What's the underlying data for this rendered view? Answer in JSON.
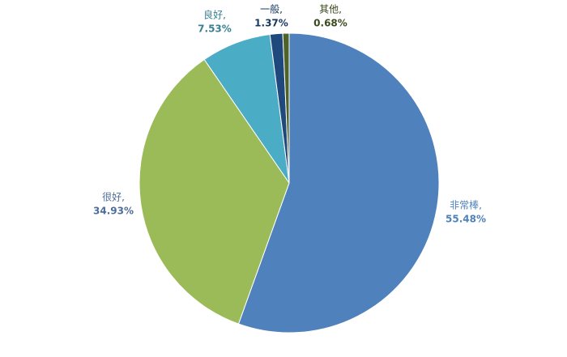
{
  "chart_data": {
    "type": "pie",
    "categories": [
      "非常棒,",
      "很好,",
      "良好,",
      "一般,",
      "其他,"
    ],
    "values": [
      55.48,
      34.93,
      7.53,
      1.37,
      0.68
    ],
    "value_labels": [
      "55.48%",
      "34.93%",
      "7.53%",
      "1.37%",
      "0.68%"
    ],
    "colors": [
      "#4f81bd",
      "#9bbb59",
      "#4bacc6",
      "#1f497d",
      "#4f6228"
    ]
  }
}
